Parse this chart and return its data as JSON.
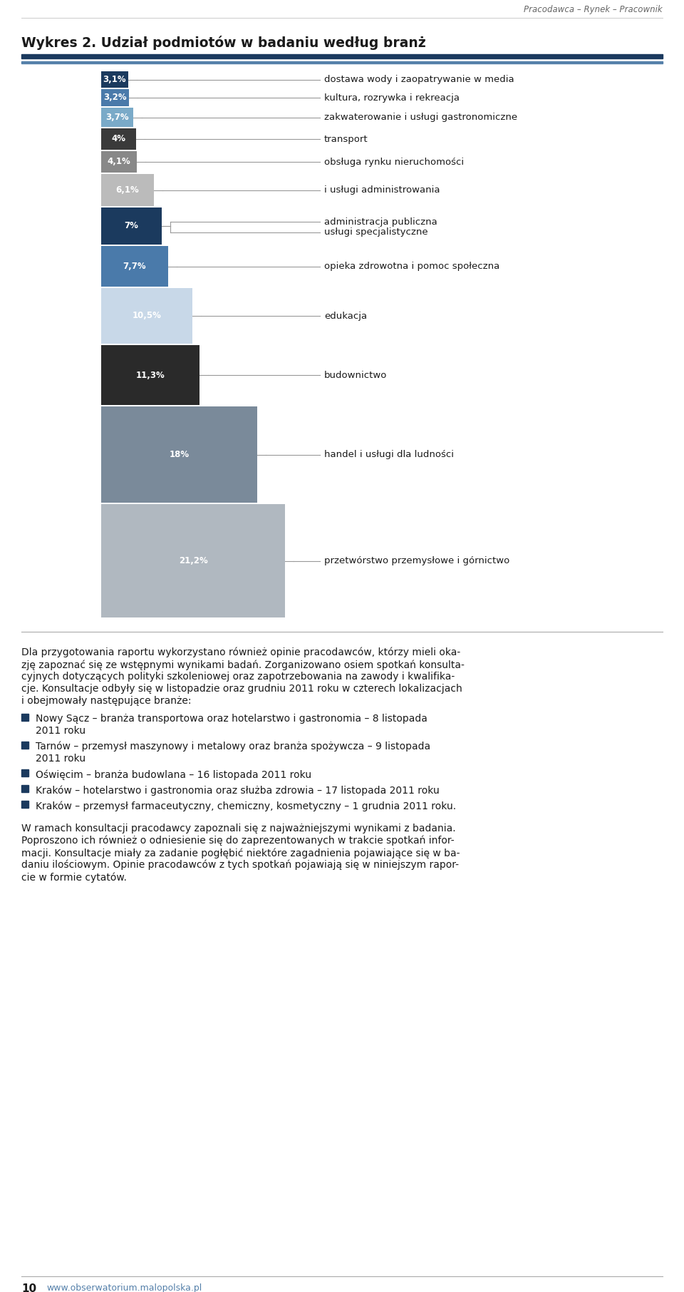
{
  "title_main": "Wykres 2. Udział podmiotów w badaniu według branż",
  "header_text": "Pracodawca – Rynek – Pracownik",
  "bars": [
    {
      "value": 3.1,
      "label": "3,1%",
      "color": "#1b3a5e",
      "annotation": "dostawa wody i zaopatrywanie w media"
    },
    {
      "value": 3.2,
      "label": "3,2%",
      "color": "#4a7aaa",
      "annotation": "kultura, rozrywka i rekreacja"
    },
    {
      "value": 3.7,
      "label": "3,7%",
      "color": "#7aaac8",
      "annotation": "zakwaterowanie i usługi gastronomiczne"
    },
    {
      "value": 4.0,
      "label": "4%",
      "color": "#3a3a3a",
      "annotation": "transport"
    },
    {
      "value": 4.1,
      "label": "4,1%",
      "color": "#888888",
      "annotation": "obsługa rynku nieruchomości"
    },
    {
      "value": 6.1,
      "label": "6,1%",
      "color": "#bbbbbb",
      "annotation": "i usługi administrowania"
    },
    {
      "value": 7.0,
      "label": "7%",
      "color": "#1b3a5e",
      "annotation": "administracja publiczna"
    },
    {
      "value": 7.7,
      "label": "7,7%",
      "color": "#4a7aaa",
      "annotation": "opieka zdrowotna i pomoc społeczna"
    },
    {
      "value": 10.5,
      "label": "10,5%",
      "color": "#c8d8e8",
      "annotation": "edukacja"
    },
    {
      "value": 11.3,
      "label": "11,3%",
      "color": "#2a2a2a",
      "annotation": "budownictwo"
    },
    {
      "value": 18.0,
      "label": "18%",
      "color": "#7a8a9a",
      "annotation": "handel i usługi dla ludności"
    },
    {
      "value": 21.2,
      "label": "21,2%",
      "color": "#b0b8c0",
      "annotation": "przetwórstwo przemysłowe i górnictwo"
    }
  ],
  "extra_annotation": "usługi specjalistyczne",
  "body_text_1": "Dla przygotowania raportu wykorzystano również opinie pracodawców, którzy mieli oka-\nzję zapoznać się ze wstępnymi wynikami badań. Zorganizowano osiem spotkań konsulta-\ncyjnych dotyczących polityki szkoleniowej oraz zapotrzebowania na zawody i kwalifika-\ncje. Konsultacje odbyły się w listopadzie oraz grudniu 2011 roku w czterech lokalizacjach\ni obejmowały następujące branże:",
  "bullet_points": [
    "Nowy Sącz – branża transportowa oraz hotelarstwo i gastronomia – 8 listopada\n2011 roku",
    "Tarnów – przemysł maszynowy i metalowy oraz branża spożywcza – 9 listopada\n2011 roku",
    "Oświęcim – branża budowlana – 16 listopada 2011 roku",
    "Kraków – hotelarstwo i gastronomia oraz służba zdrowia – 17 listopada 2011 roku",
    "Kraków – przemysł farmaceutyczny, chemiczny, kosmetyczny – 1 grudnia 2011 roku."
  ],
  "body_text_2": "W ramach konsultacji pracodawcy zapoznali się z najważniejszymi wynikami z badania.\nPoproszono ich również o odniesienie się do zaprezentowanych w trakcie spotkań infor-\nmacji. Konsultacje miały za zadanie pogłębić niektóre zagadnienia pojawiające się w ba-\ndaniu ilościowym. Opinie pracodawców z tych spotkań pojawiają się w niniejszym rapor-\ncie w formie cytatów.",
  "footer_number": "10",
  "footer_url": "www.obserwatorium.malopolska.pl",
  "bg_color": "#ffffff"
}
